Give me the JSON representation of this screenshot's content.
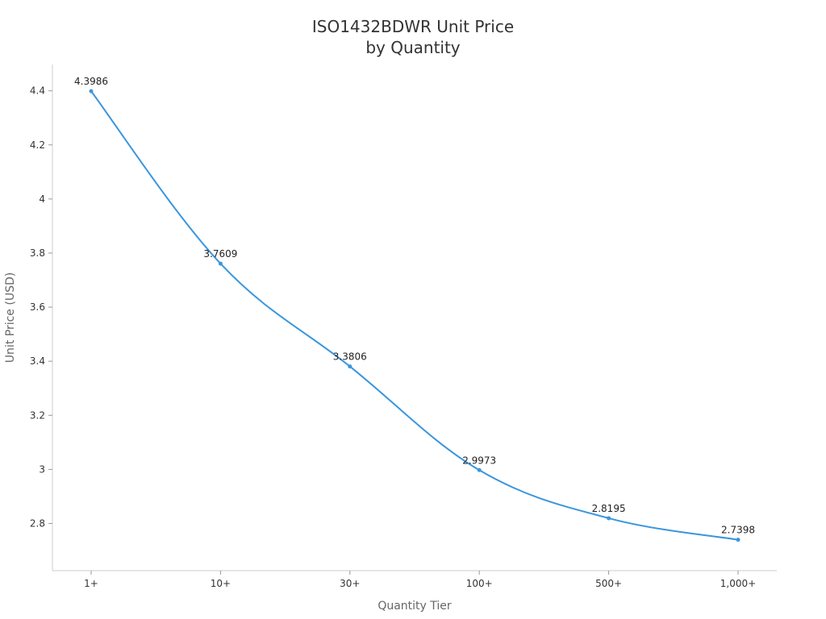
{
  "chart_data": {
    "type": "line",
    "title_lines": [
      "ISO1432BDWR Unit Price",
      "by Quantity"
    ],
    "xlabel": "Quantity Tier",
    "ylabel": "Unit Price (USD)",
    "categories": [
      "1+",
      "10+",
      "30+",
      "100+",
      "500+",
      "1,000+"
    ],
    "series": [
      {
        "values": [
          4.3986,
          3.7609,
          3.3806,
          2.9973,
          2.8195,
          2.7398
        ],
        "labels": [
          "4.3986",
          "3.7609",
          "3.3806",
          "2.9973",
          "2.8195",
          "2.7398"
        ]
      }
    ],
    "yticks": [
      2.8,
      3,
      3.2,
      3.4,
      3.6,
      3.8,
      4,
      4.2,
      4.4
    ],
    "ytick_labels": [
      "2.8",
      "3",
      "3.2",
      "3.4",
      "3.6",
      "3.8",
      "4",
      "4.2",
      "4.4"
    ],
    "ylim": [
      2.6256,
      4.4973
    ],
    "grid": false,
    "line_color": "#3a96dd",
    "point_color": "#3a96dd"
  }
}
